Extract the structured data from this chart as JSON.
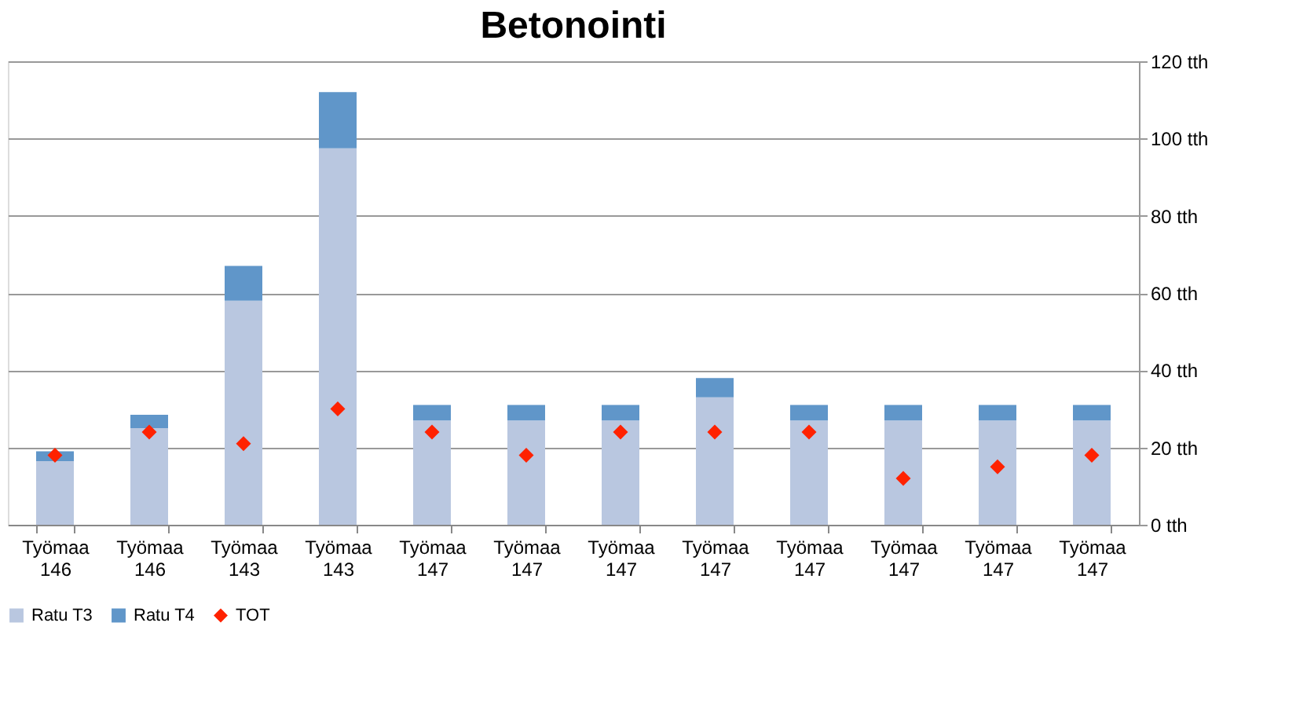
{
  "chart_data": {
    "type": "bar",
    "title": "Betonointi",
    "stacked": true,
    "categories": [
      "Työmaa 146",
      "Työmaa 146",
      "Työmaa 143",
      "Työmaa 143",
      "Työmaa 147",
      "Työmaa 147",
      "Työmaa 147",
      "Työmaa 147",
      "Työmaa 147",
      "Työmaa 147",
      "Työmaa 147",
      "Työmaa 147"
    ],
    "series": [
      {
        "name": "Ratu T3",
        "color": "#b9c7e0",
        "values": [
          16.5,
          25,
          58,
          97.5,
          27,
          27,
          27,
          33,
          27,
          27,
          27,
          27
        ]
      },
      {
        "name": "Ratu T4",
        "color": "#6096c9",
        "values": [
          2.5,
          3.5,
          9,
          14.5,
          4,
          4,
          4,
          5,
          4,
          4,
          4,
          4
        ]
      },
      {
        "name": "TOT",
        "type": "scatter",
        "color": "#ff2200",
        "marker": "diamond",
        "values": [
          18,
          24,
          21,
          30,
          24,
          18,
          24,
          24,
          24,
          12,
          15,
          18
        ]
      }
    ],
    "ylim": [
      0,
      120
    ],
    "yticks": [
      {
        "value": 0,
        "label": "0 tth"
      },
      {
        "value": 20,
        "label": "20 tth"
      },
      {
        "value": 40,
        "label": "40 tth"
      },
      {
        "value": 60,
        "label": "60 tth"
      },
      {
        "value": 80,
        "label": "80 tth"
      },
      {
        "value": 100,
        "label": "100 tth"
      },
      {
        "value": 120,
        "label": "120 tth"
      }
    ],
    "grid": "y",
    "legend": "bottom"
  }
}
